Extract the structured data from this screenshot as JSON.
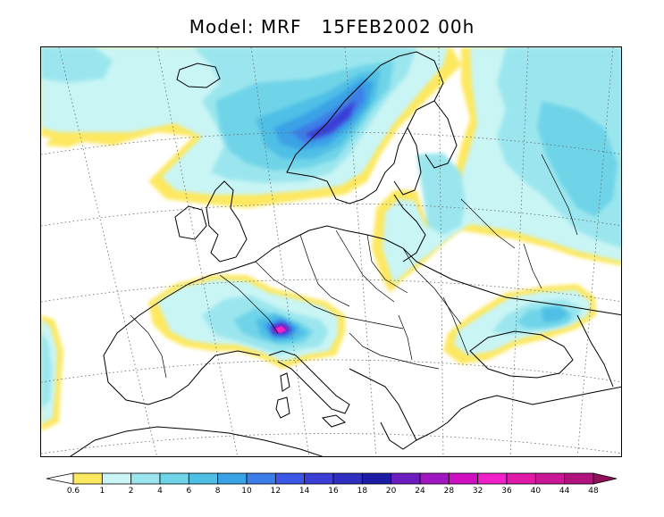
{
  "header": {
    "title": "Model: MRF   15FEB2002 00h"
  },
  "legend": {
    "levels": [
      "0.6",
      "1",
      "2",
      "4",
      "6",
      "8",
      "10",
      "12",
      "14",
      "16",
      "18",
      "20",
      "24",
      "28",
      "32",
      "36",
      "40",
      "44",
      "48"
    ],
    "colors": [
      "#fde860",
      "#c9f5f5",
      "#9be6ee",
      "#6fd4e8",
      "#4fbfe6",
      "#3aa2e6",
      "#3c7ee8",
      "#3a57e6",
      "#3a3ed6",
      "#2e2ec0",
      "#1c1ca6",
      "#6a1cc0",
      "#a016c0",
      "#d010c0",
      "#f021c8",
      "#e01aa8",
      "#c81696",
      "#b0127e",
      "#90105e"
    ],
    "low_color": "#ffffff",
    "high_color": "#90105e"
  },
  "map": {
    "land_color": "#ffffff",
    "coast_color": "#000000",
    "grid_color": "#555555"
  }
}
